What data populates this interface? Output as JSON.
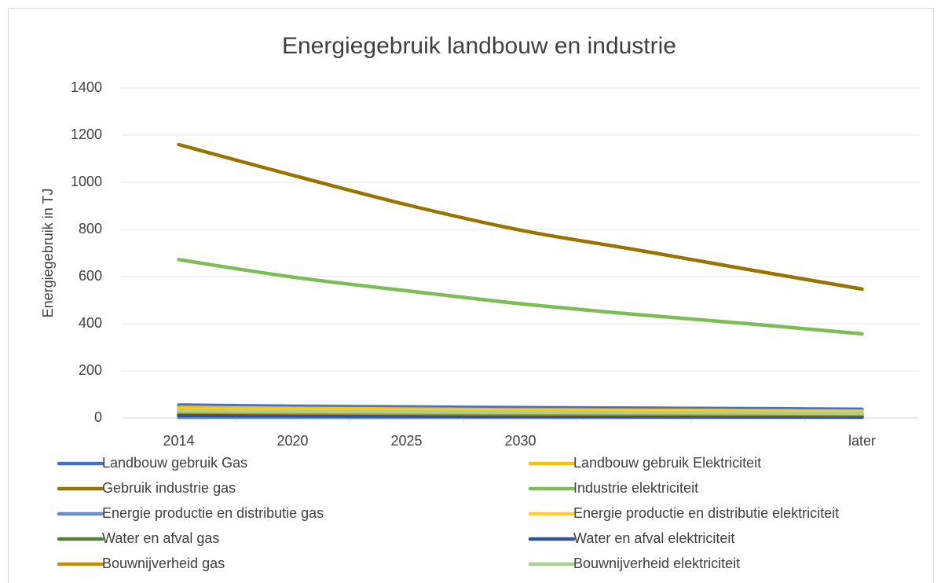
{
  "chart_data": {
    "type": "line",
    "title": "Energiegebruik landbouw en industrie",
    "y_label": "Energiegebruik in TJ",
    "categories": [
      "2014",
      "2020",
      "2025",
      "2030",
      null,
      null,
      "later"
    ],
    "ylim": [
      0,
      1400
    ],
    "yticks": [
      0,
      200,
      400,
      600,
      800,
      1000,
      1200,
      1400
    ],
    "grid": true,
    "series": [
      {
        "name": "Landbouw gebruik Gas",
        "color": "#4472c4",
        "values": [
          55,
          50,
          47,
          44,
          42,
          40,
          37
        ]
      },
      {
        "name": "Landbouw gebruik Elektriciteit",
        "color": "#ffc000",
        "values": [
          45,
          41,
          38,
          35,
          33,
          31,
          29
        ]
      },
      {
        "name": "Gebruik industrie gas",
        "color": "#997300",
        "values": [
          1160,
          1030,
          905,
          797,
          715,
          630,
          547
        ]
      },
      {
        "name": "Industrie elektriciteit",
        "color": "#7cbd56",
        "values": [
          672,
          598,
          540,
          485,
          440,
          400,
          357
        ]
      },
      {
        "name": "Energie productie en distributie gas",
        "color": "#698ed0",
        "values": [
          3,
          3,
          3,
          3,
          3,
          3,
          3
        ]
      },
      {
        "name": "Energie productie en distributie elektriciteit",
        "color": "#ffcd33",
        "values": [
          35,
          33,
          31,
          29,
          28,
          27,
          25
        ]
      },
      {
        "name": "Water en afval gas",
        "color": "#548235",
        "values": [
          15,
          12,
          10,
          8,
          7,
          6,
          5
        ]
      },
      {
        "name": "Water en afval elektriciteit",
        "color": "#2f5597",
        "values": [
          10,
          9,
          8,
          7,
          6,
          6,
          5
        ]
      },
      {
        "name": "Bouwnijverheid gas",
        "color": "#bf9000",
        "values": [
          25,
          22,
          20,
          18,
          17,
          16,
          15
        ]
      },
      {
        "name": "Bouwnijverheid elektriciteit",
        "color": "#a9d18e",
        "values": [
          30,
          28,
          26,
          24,
          23,
          22,
          20
        ]
      }
    ]
  }
}
